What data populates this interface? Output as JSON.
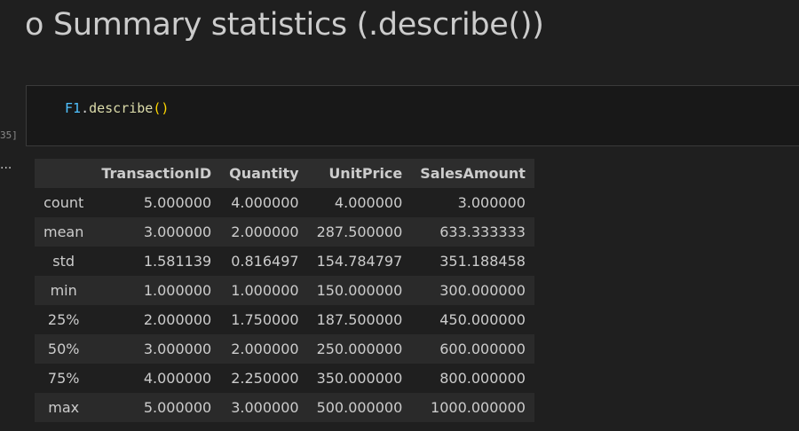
{
  "heading": "o Summary statistics (.describe())",
  "code_cell": {
    "execution_label": "35]",
    "code": {
      "var": "F1",
      "dot": ".",
      "fn": "describe",
      "parens": "()"
    }
  },
  "output_marker": "...",
  "table": {
    "columns": [
      "",
      "TransactionID",
      "Quantity",
      "UnitPrice",
      "SalesAmount"
    ],
    "rows": [
      [
        "count",
        "5.000000",
        "4.000000",
        "4.000000",
        "3.000000"
      ],
      [
        "mean",
        "3.000000",
        "2.000000",
        "287.500000",
        "633.333333"
      ],
      [
        "std",
        "1.581139",
        "0.816497",
        "154.784797",
        "351.188458"
      ],
      [
        "min",
        "1.000000",
        "1.000000",
        "150.000000",
        "300.000000"
      ],
      [
        "25%",
        "2.000000",
        "1.750000",
        "187.500000",
        "450.000000"
      ],
      [
        "50%",
        "3.000000",
        "2.000000",
        "250.000000",
        "600.000000"
      ],
      [
        "75%",
        "4.000000",
        "2.250000",
        "350.000000",
        "800.000000"
      ],
      [
        "max",
        "5.000000",
        "3.000000",
        "500.000000",
        "1000.000000"
      ]
    ]
  }
}
